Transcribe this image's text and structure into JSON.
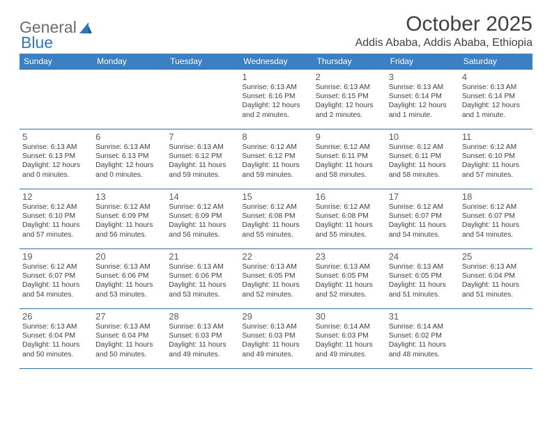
{
  "logo": {
    "word1": "General",
    "word2": "Blue"
  },
  "title": "October 2025",
  "location": "Addis Ababa, Addis Ababa, Ethiopia",
  "colors": {
    "header_bg": "#3a80c3",
    "header_text": "#ffffff",
    "border": "#2f6faa",
    "body_text": "#404040",
    "logo_gray": "#6b6b6b",
    "logo_blue": "#2f78bd",
    "page_bg": "#ffffff"
  },
  "weekdays": [
    "Sunday",
    "Monday",
    "Tuesday",
    "Wednesday",
    "Thursday",
    "Friday",
    "Saturday"
  ],
  "weeks": [
    [
      null,
      null,
      null,
      {
        "n": "1",
        "sr": "6:13 AM",
        "ss": "6:16 PM",
        "dl": "12 hours and 2 minutes."
      },
      {
        "n": "2",
        "sr": "6:13 AM",
        "ss": "6:15 PM",
        "dl": "12 hours and 2 minutes."
      },
      {
        "n": "3",
        "sr": "6:13 AM",
        "ss": "6:14 PM",
        "dl": "12 hours and 1 minute."
      },
      {
        "n": "4",
        "sr": "6:13 AM",
        "ss": "6:14 PM",
        "dl": "12 hours and 1 minute."
      }
    ],
    [
      {
        "n": "5",
        "sr": "6:13 AM",
        "ss": "6:13 PM",
        "dl": "12 hours and 0 minutes."
      },
      {
        "n": "6",
        "sr": "6:13 AM",
        "ss": "6:13 PM",
        "dl": "12 hours and 0 minutes."
      },
      {
        "n": "7",
        "sr": "6:13 AM",
        "ss": "6:12 PM",
        "dl": "11 hours and 59 minutes."
      },
      {
        "n": "8",
        "sr": "6:12 AM",
        "ss": "6:12 PM",
        "dl": "11 hours and 59 minutes."
      },
      {
        "n": "9",
        "sr": "6:12 AM",
        "ss": "6:11 PM",
        "dl": "11 hours and 58 minutes."
      },
      {
        "n": "10",
        "sr": "6:12 AM",
        "ss": "6:11 PM",
        "dl": "11 hours and 58 minutes."
      },
      {
        "n": "11",
        "sr": "6:12 AM",
        "ss": "6:10 PM",
        "dl": "11 hours and 57 minutes."
      }
    ],
    [
      {
        "n": "12",
        "sr": "6:12 AM",
        "ss": "6:10 PM",
        "dl": "11 hours and 57 minutes."
      },
      {
        "n": "13",
        "sr": "6:12 AM",
        "ss": "6:09 PM",
        "dl": "11 hours and 56 minutes."
      },
      {
        "n": "14",
        "sr": "6:12 AM",
        "ss": "6:09 PM",
        "dl": "11 hours and 56 minutes."
      },
      {
        "n": "15",
        "sr": "6:12 AM",
        "ss": "6:08 PM",
        "dl": "11 hours and 55 minutes."
      },
      {
        "n": "16",
        "sr": "6:12 AM",
        "ss": "6:08 PM",
        "dl": "11 hours and 55 minutes."
      },
      {
        "n": "17",
        "sr": "6:12 AM",
        "ss": "6:07 PM",
        "dl": "11 hours and 54 minutes."
      },
      {
        "n": "18",
        "sr": "6:12 AM",
        "ss": "6:07 PM",
        "dl": "11 hours and 54 minutes."
      }
    ],
    [
      {
        "n": "19",
        "sr": "6:12 AM",
        "ss": "6:07 PM",
        "dl": "11 hours and 54 minutes."
      },
      {
        "n": "20",
        "sr": "6:13 AM",
        "ss": "6:06 PM",
        "dl": "11 hours and 53 minutes."
      },
      {
        "n": "21",
        "sr": "6:13 AM",
        "ss": "6:06 PM",
        "dl": "11 hours and 53 minutes."
      },
      {
        "n": "22",
        "sr": "6:13 AM",
        "ss": "6:05 PM",
        "dl": "11 hours and 52 minutes."
      },
      {
        "n": "23",
        "sr": "6:13 AM",
        "ss": "6:05 PM",
        "dl": "11 hours and 52 minutes."
      },
      {
        "n": "24",
        "sr": "6:13 AM",
        "ss": "6:05 PM",
        "dl": "11 hours and 51 minutes."
      },
      {
        "n": "25",
        "sr": "6:13 AM",
        "ss": "6:04 PM",
        "dl": "11 hours and 51 minutes."
      }
    ],
    [
      {
        "n": "26",
        "sr": "6:13 AM",
        "ss": "6:04 PM",
        "dl": "11 hours and 50 minutes."
      },
      {
        "n": "27",
        "sr": "6:13 AM",
        "ss": "6:04 PM",
        "dl": "11 hours and 50 minutes."
      },
      {
        "n": "28",
        "sr": "6:13 AM",
        "ss": "6:03 PM",
        "dl": "11 hours and 49 minutes."
      },
      {
        "n": "29",
        "sr": "6:13 AM",
        "ss": "6:03 PM",
        "dl": "11 hours and 49 minutes."
      },
      {
        "n": "30",
        "sr": "6:14 AM",
        "ss": "6:03 PM",
        "dl": "11 hours and 49 minutes."
      },
      {
        "n": "31",
        "sr": "6:14 AM",
        "ss": "6:02 PM",
        "dl": "11 hours and 48 minutes."
      },
      null
    ]
  ],
  "labels": {
    "sunrise": "Sunrise:",
    "sunset": "Sunset:",
    "daylight": "Daylight:"
  }
}
